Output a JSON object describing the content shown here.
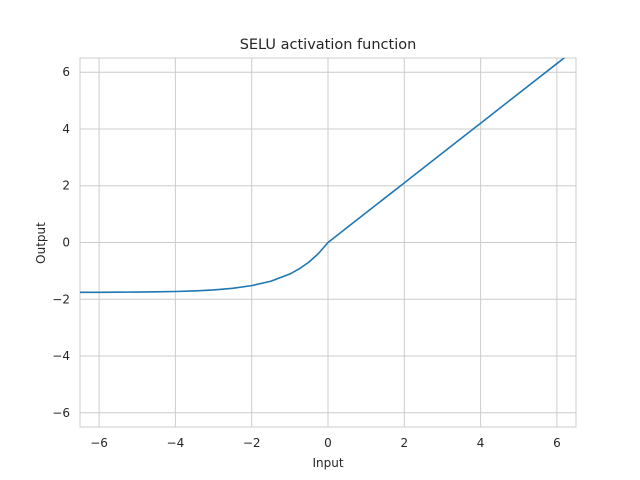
{
  "chart_data": {
    "type": "line",
    "title": "SELU activation function",
    "xlabel": "Input",
    "ylabel": "Output",
    "xlim": [
      -6.5,
      6.5
    ],
    "ylim": [
      -6.5,
      6.5
    ],
    "xticks": [
      -6,
      -4,
      -2,
      0,
      2,
      4,
      6
    ],
    "yticks": [
      -6,
      -4,
      -2,
      0,
      2,
      4,
      6
    ],
    "xtick_labels": [
      "−6",
      "−4",
      "−2",
      "0",
      "2",
      "4",
      "6"
    ],
    "ytick_labels": [
      "−6",
      "−4",
      "−2",
      "0",
      "2",
      "4",
      "6"
    ],
    "grid": true,
    "series": [
      {
        "color": "#1f77b4",
        "x": [
          -6.5,
          -6,
          -5.5,
          -5,
          -4.5,
          -4,
          -3.5,
          -3,
          -2.5,
          -2,
          -1.5,
          -1,
          -0.75,
          -0.5,
          -0.25,
          0,
          1,
          2,
          3,
          4,
          5,
          6,
          6.5
        ],
        "y": [
          -1.755,
          -1.754,
          -1.751,
          -1.746,
          -1.738,
          -1.726,
          -1.705,
          -1.671,
          -1.615,
          -1.52,
          -1.365,
          -1.111,
          -0.924,
          -0.692,
          -0.388,
          0,
          1.051,
          2.101,
          3.152,
          4.203,
          5.254,
          6.304,
          6.83
        ]
      }
    ]
  }
}
